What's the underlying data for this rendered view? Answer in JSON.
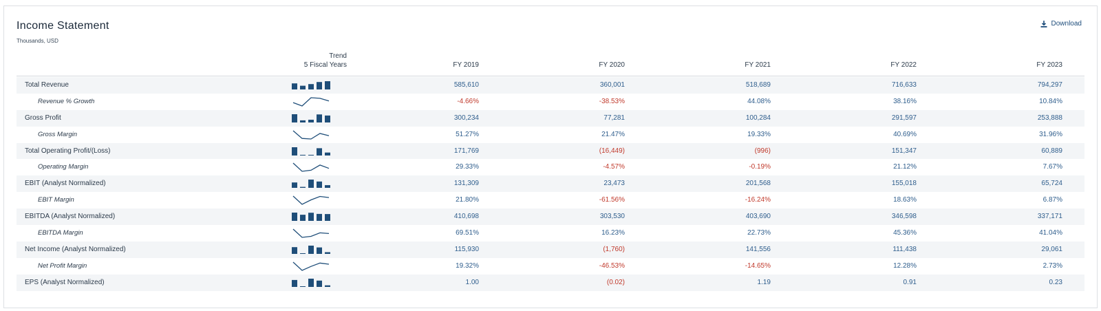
{
  "title": "Income Statement",
  "subtitle": "Thousands, USD",
  "download_label": "Download",
  "trend_header": {
    "line1": "Trend",
    "line2": "5 Fiscal Years"
  },
  "years": [
    "FY 2019",
    "FY 2020",
    "FY 2021",
    "FY 2022",
    "FY 2023"
  ],
  "colors": {
    "bar": "#1f4e79",
    "positive": "#2e5d8c",
    "negative": "#c0392b"
  },
  "rows": [
    {
      "label": "Total Revenue",
      "sub": false,
      "spark": "bar",
      "values": [
        "585,610",
        "360,001",
        "518,689",
        "716,633",
        "794,297"
      ],
      "raw": [
        585610,
        360001,
        518689,
        716633,
        794297
      ]
    },
    {
      "label": "Revenue % Growth",
      "sub": true,
      "spark": "line",
      "values": [
        "-4.66%",
        "-38.53%",
        "44.08%",
        "38.16%",
        "10.84%"
      ],
      "raw": [
        -4.66,
        -38.53,
        44.08,
        38.16,
        10.84
      ]
    },
    {
      "label": "Gross Profit",
      "sub": false,
      "spark": "bar",
      "values": [
        "300,234",
        "77,281",
        "100,284",
        "291,597",
        "253,888"
      ],
      "raw": [
        300234,
        77281,
        100284,
        291597,
        253888
      ]
    },
    {
      "label": "Gross Margin",
      "sub": true,
      "spark": "line",
      "values": [
        "51.27%",
        "21.47%",
        "19.33%",
        "40.69%",
        "31.96%"
      ],
      "raw": [
        51.27,
        21.47,
        19.33,
        40.69,
        31.96
      ]
    },
    {
      "label": "Total Operating Profit/(Loss)",
      "sub": false,
      "spark": "bar",
      "values": [
        "171,769",
        "(16,449)",
        "(996)",
        "151,347",
        "60,889"
      ],
      "raw": [
        171769,
        -16449,
        -996,
        151347,
        60889
      ]
    },
    {
      "label": "Operating Margin",
      "sub": true,
      "spark": "line",
      "values": [
        "29.33%",
        "-4.57%",
        "-0.19%",
        "21.12%",
        "7.67%"
      ],
      "raw": [
        29.33,
        -4.57,
        -0.19,
        21.12,
        7.67
      ]
    },
    {
      "label": "EBIT (Analyst Normalized)",
      "sub": false,
      "spark": "bar",
      "values": [
        "131,309",
        "23,473",
        "201,568",
        "155,018",
        "65,724"
      ],
      "raw": [
        131309,
        23473,
        201568,
        155018,
        65724
      ]
    },
    {
      "label": "EBIT Margin",
      "sub": true,
      "spark": "line",
      "values": [
        "21.80%",
        "-61.56%",
        "-16.24%",
        "18.63%",
        "6.87%"
      ],
      "raw": [
        21.8,
        -61.56,
        -16.24,
        18.63,
        6.87
      ]
    },
    {
      "label": "EBITDA (Analyst Normalized)",
      "sub": false,
      "spark": "bar",
      "values": [
        "410,698",
        "303,530",
        "403,690",
        "346,598",
        "337,171"
      ],
      "raw": [
        410698,
        303530,
        403690,
        346598,
        337171
      ]
    },
    {
      "label": "EBITDA Margin",
      "sub": true,
      "spark": "line",
      "values": [
        "69.51%",
        "16.23%",
        "22.73%",
        "45.36%",
        "41.04%"
      ],
      "raw": [
        69.51,
        16.23,
        22.73,
        45.36,
        41.04
      ]
    },
    {
      "label": "Net Income (Analyst Normalized)",
      "sub": false,
      "spark": "bar",
      "values": [
        "115,930",
        "(1,760)",
        "141,556",
        "111,438",
        "29,061"
      ],
      "raw": [
        115930,
        -1760,
        141556,
        111438,
        29061
      ]
    },
    {
      "label": "Net Profit Margin",
      "sub": true,
      "spark": "line",
      "values": [
        "19.32%",
        "-46.53%",
        "-14.65%",
        "12.28%",
        "2.73%"
      ],
      "raw": [
        19.32,
        -46.53,
        -14.65,
        12.28,
        2.73
      ]
    },
    {
      "label": "EPS (Analyst Normalized)",
      "sub": false,
      "spark": "bar",
      "values": [
        "1.00",
        "(0.02)",
        "1.19",
        "0.91",
        "0.23"
      ],
      "raw": [
        1.0,
        -0.02,
        1.19,
        0.91,
        0.23
      ]
    }
  ]
}
